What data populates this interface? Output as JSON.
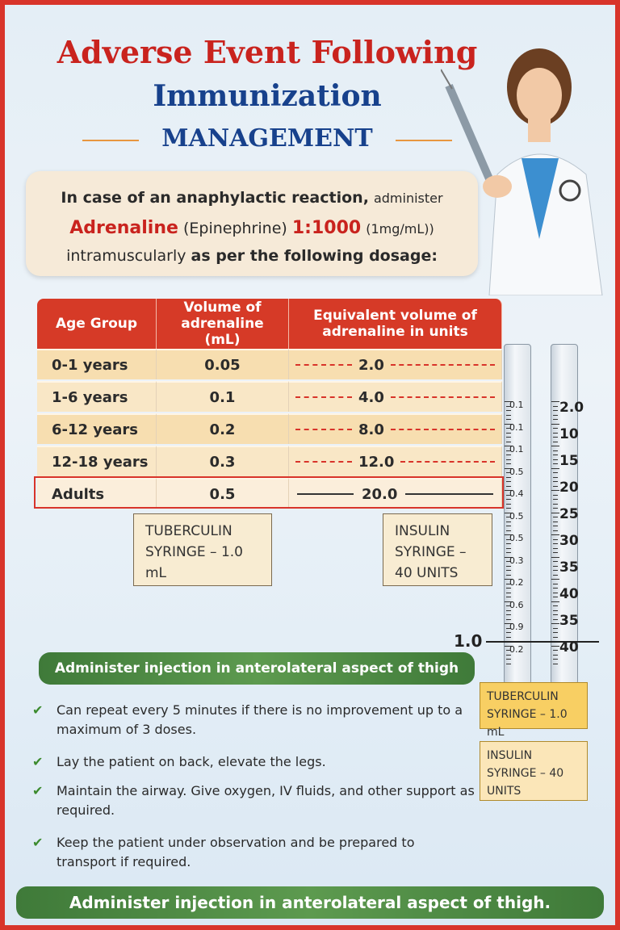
{
  "header": {
    "title_line1": "Adverse Event Following",
    "title_line2": "Immunization",
    "title_line3": "MANAGEMENT"
  },
  "intro": {
    "part1": "In case of an anaphylactic reaction,",
    "part2": "administer",
    "part3": "Adrenaline",
    "part4": "(Epinephrine)",
    "part5": "1:1000",
    "part6": "(1mg/mL))",
    "part7": "intramuscularly",
    "part8": "as per the following dosage:"
  },
  "table": {
    "headers": [
      "Age Group",
      "Volume of adrenaline (mL)",
      "Equivalent volume of adrenaline in units"
    ],
    "rows": [
      [
        "0-1 years",
        "0.05",
        "2.0"
      ],
      [
        "1-6 years",
        "0.1",
        "4.0"
      ],
      [
        "6-12 years",
        "0.2",
        "8.0"
      ],
      [
        "12-18 years",
        "0.3",
        "12.0"
      ],
      [
        "Adults",
        "0.5",
        "20.0"
      ]
    ]
  },
  "labels": {
    "tuberculin": "TUBERCULIN SYRINGE – 1.0 mL",
    "insulin": "INSULIN SYRINGE – 40 UNITS"
  },
  "syringes": {
    "tuberculin_scale": [
      "0.1",
      "0.1",
      "0.1",
      "0.5",
      "0.4",
      "0.5",
      "0.5",
      "0.3",
      "0.2",
      "0.6",
      "0.9",
      "0.2"
    ],
    "insulin_scale": [
      "2.0",
      "10",
      "15",
      "20",
      "25",
      "30",
      "35",
      "40",
      "35",
      "40"
    ],
    "marker": "1.0"
  },
  "instructions": {
    "banner": "Administer injection in anterolateral aspect of thigh",
    "bullets": [
      "Can repeat every 5 minutes if there is no improvement up to a maximum of 3 doses.",
      "Lay the patient on back, elevate the legs.",
      "Maintain the airway. Give oxygen, IV fluids, and other support as required.",
      "Keep the patient under observation and be prepared to transport if required."
    ]
  },
  "side_labels": {
    "tuberculin": "TUBERCULIN SYRINGE – 1.0 mL",
    "insulin": "INSULIN SYRINGE – 40 UNITS"
  },
  "footer": {
    "text": "Administer injection in anterolateral aspect of thigh."
  }
}
